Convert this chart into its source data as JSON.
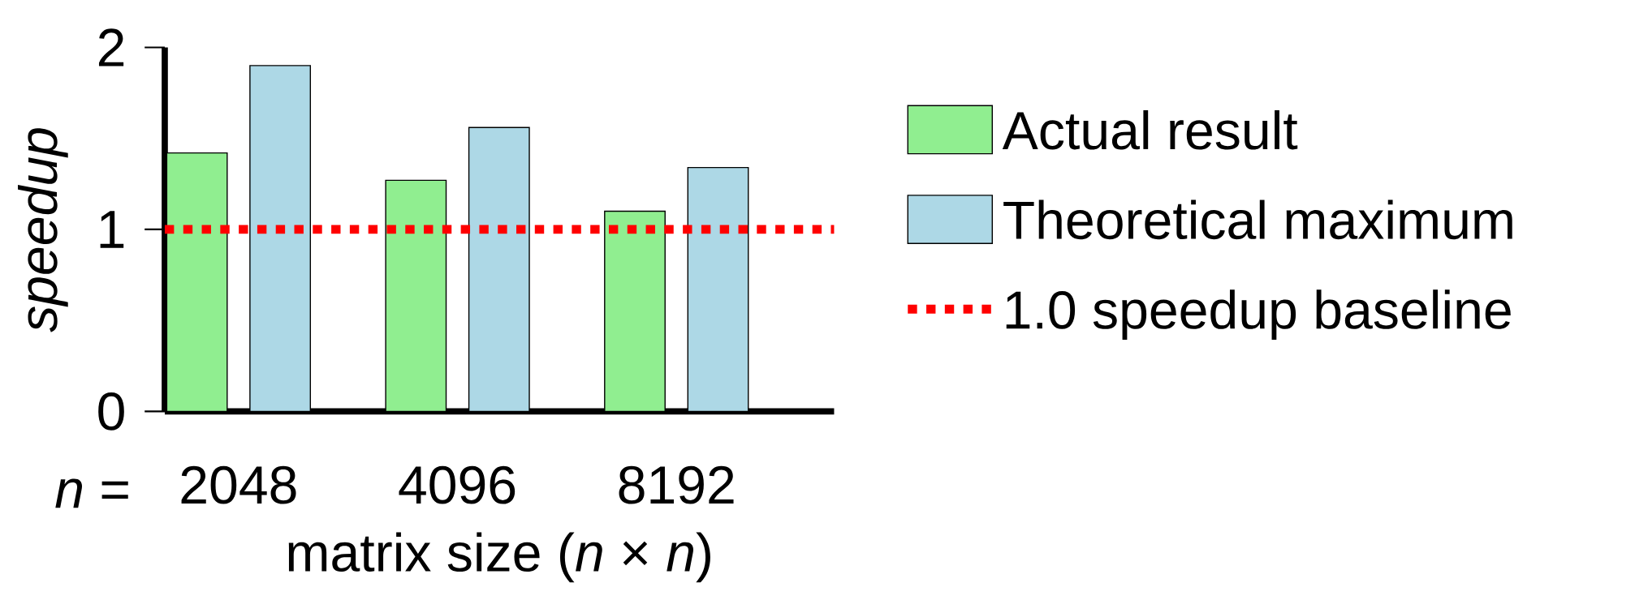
{
  "chart_data": {
    "type": "bar",
    "xlabel": "matrix size (*n* × *n*)",
    "ylabel": "speedup",
    "categories": [
      "2048",
      "4096",
      "8192"
    ],
    "series": [
      {
        "name": "Actual result",
        "color": "#90ee90",
        "values": [
          1.42,
          1.27,
          1.1
        ]
      },
      {
        "name": "Theoretical maximum",
        "color": "#add8e6",
        "values": [
          1.9,
          1.56,
          1.34
        ]
      }
    ],
    "ylim": [
      0,
      2
    ],
    "yticks": [
      0,
      1,
      2
    ],
    "ref_lines": [
      {
        "axis": "y",
        "value": 1,
        "label": "1.0 speedup baseline",
        "color": "#ff0000",
        "line_style": "dotted"
      }
    ],
    "annotations": [
      "*n* ="
    ],
    "legend": "right"
  }
}
